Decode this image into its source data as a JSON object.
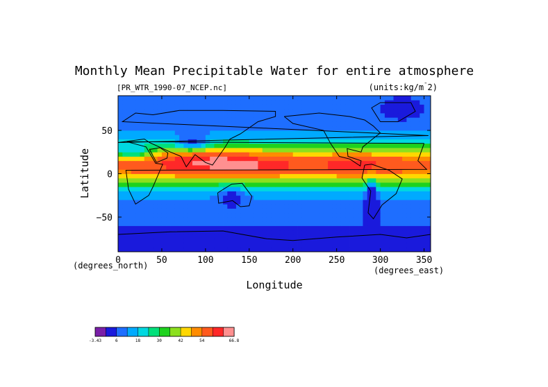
{
  "chart_data": {
    "type": "heatmap",
    "title": "Monthly Mean Precipitable Water for entire atmosphere",
    "source_label": "[PR_WTR_1990-07_NCEP.nc]",
    "units_label": "(units:kg/m^2)",
    "xlabel": "Longitude",
    "ylabel": "Latitude",
    "x_units": "(degrees_east)",
    "y_units": "(degrees_north)",
    "xlim": [
      0,
      357.5
    ],
    "ylim": [
      -90,
      90
    ],
    "x_ticks": [
      0,
      50,
      100,
      150,
      200,
      250,
      300,
      350
    ],
    "y_ticks": [
      50,
      0,
      -50
    ],
    "x_tick_labels": [
      "0",
      "50",
      "100",
      "150",
      "200",
      "250",
      "300",
      "350"
    ],
    "y_tick_labels": [
      "50",
      "0",
      "−50"
    ],
    "colorbar": {
      "levels": [
        -3.43,
        0,
        6,
        12,
        18,
        24,
        30,
        36,
        42,
        48,
        54,
        60,
        66.8
      ],
      "tick_labels": [
        "-3.43",
        "6",
        "18",
        "30",
        "42",
        "54",
        "66.8"
      ],
      "tick_values": [
        -3.43,
        6,
        18,
        30,
        42,
        54,
        66.8
      ],
      "colors": [
        "#7a1fa8",
        "#1a1adc",
        "#1e6eff",
        "#00aaff",
        "#00d8e0",
        "#00e07a",
        "#1ed21e",
        "#8ce01e",
        "#ffd700",
        "#ff8c00",
        "#ff5a1e",
        "#ff2828",
        "#ff9090"
      ]
    }
  }
}
